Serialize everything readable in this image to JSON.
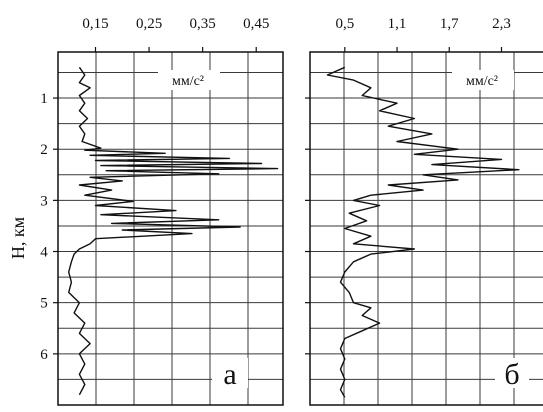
{
  "colors": {
    "ink": "#111111",
    "grid": "#3a3a3a",
    "paper": "#ffffff"
  },
  "shared": {
    "ylabel": "H, км"
  },
  "chart_data": [
    {
      "type": "line",
      "panel_label": "а",
      "unit_label": "мм/с²",
      "xlim": [
        0.08,
        0.5
      ],
      "ylim": [
        0.1,
        7.0
      ],
      "x_ticks": [
        {
          "value": 0.15,
          "label": "0,15"
        },
        {
          "value": 0.25,
          "label": "0,25"
        },
        {
          "value": 0.35,
          "label": "0,35"
        },
        {
          "value": 0.45,
          "label": "0,45"
        }
      ],
      "y_ticks": [
        {
          "value": 1,
          "label": "1"
        },
        {
          "value": 2,
          "label": "2"
        },
        {
          "value": 3,
          "label": "3"
        },
        {
          "value": 4,
          "label": "4"
        },
        {
          "value": 5,
          "label": "5"
        },
        {
          "value": 6,
          "label": "6"
        }
      ],
      "grid": true,
      "series": [
        {
          "points": [
            [
              0.12,
              0.4
            ],
            [
              0.13,
              0.55
            ],
            [
              0.12,
              0.7
            ],
            [
              0.14,
              0.8
            ],
            [
              0.12,
              0.95
            ],
            [
              0.13,
              1.1
            ],
            [
              0.12,
              1.25
            ],
            [
              0.135,
              1.4
            ],
            [
              0.12,
              1.55
            ],
            [
              0.13,
              1.7
            ],
            [
              0.125,
              1.85
            ],
            [
              0.16,
              1.98
            ],
            [
              0.13,
              2.02
            ],
            [
              0.28,
              2.08
            ],
            [
              0.14,
              2.12
            ],
            [
              0.4,
              2.18
            ],
            [
              0.15,
              2.22
            ],
            [
              0.46,
              2.28
            ],
            [
              0.16,
              2.32
            ],
            [
              0.49,
              2.38
            ],
            [
              0.17,
              2.42
            ],
            [
              0.38,
              2.48
            ],
            [
              0.14,
              2.55
            ],
            [
              0.2,
              2.62
            ],
            [
              0.12,
              2.7
            ],
            [
              0.18,
              2.8
            ],
            [
              0.13,
              2.9
            ],
            [
              0.22,
              3.02
            ],
            [
              0.15,
              3.1
            ],
            [
              0.3,
              3.2
            ],
            [
              0.16,
              3.28
            ],
            [
              0.38,
              3.38
            ],
            [
              0.18,
              3.45
            ],
            [
              0.42,
              3.52
            ],
            [
              0.2,
              3.58
            ],
            [
              0.33,
              3.65
            ],
            [
              0.15,
              3.75
            ],
            [
              0.14,
              3.85
            ],
            [
              0.12,
              3.95
            ],
            [
              0.11,
              4.05
            ],
            [
              0.105,
              4.2
            ],
            [
              0.1,
              4.4
            ],
            [
              0.105,
              4.6
            ],
            [
              0.1,
              4.8
            ],
            [
              0.12,
              5.0
            ],
            [
              0.11,
              5.2
            ],
            [
              0.13,
              5.4
            ],
            [
              0.12,
              5.6
            ],
            [
              0.14,
              5.8
            ],
            [
              0.12,
              6.0
            ],
            [
              0.13,
              6.2
            ],
            [
              0.12,
              6.4
            ],
            [
              0.13,
              6.6
            ],
            [
              0.12,
              6.8
            ]
          ]
        }
      ]
    },
    {
      "type": "line",
      "panel_label": "б",
      "unit_label": "мм/с²",
      "xlim": [
        0.1,
        2.8
      ],
      "ylim": [
        0.1,
        7.0
      ],
      "x_ticks": [
        {
          "value": 0.5,
          "label": "0,5"
        },
        {
          "value": 1.1,
          "label": "1,1"
        },
        {
          "value": 1.7,
          "label": "1,7"
        },
        {
          "value": 2.3,
          "label": "2,3"
        }
      ],
      "y_ticks": [
        {
          "value": 1,
          "label": ""
        },
        {
          "value": 2,
          "label": ""
        },
        {
          "value": 3,
          "label": ""
        },
        {
          "value": 4,
          "label": ""
        },
        {
          "value": 5,
          "label": ""
        },
        {
          "value": 6,
          "label": ""
        }
      ],
      "grid": true,
      "series": [
        {
          "points": [
            [
              0.5,
              0.4
            ],
            [
              0.3,
              0.55
            ],
            [
              0.6,
              0.65
            ],
            [
              0.8,
              0.8
            ],
            [
              0.7,
              0.95
            ],
            [
              1.1,
              1.1
            ],
            [
              0.9,
              1.25
            ],
            [
              1.3,
              1.4
            ],
            [
              1.0,
              1.55
            ],
            [
              1.5,
              1.7
            ],
            [
              1.1,
              1.85
            ],
            [
              1.8,
              2.0
            ],
            [
              1.3,
              2.1
            ],
            [
              2.3,
              2.2
            ],
            [
              1.5,
              2.3
            ],
            [
              2.5,
              2.4
            ],
            [
              1.4,
              2.5
            ],
            [
              1.8,
              2.6
            ],
            [
              1.0,
              2.7
            ],
            [
              1.4,
              2.8
            ],
            [
              0.8,
              2.9
            ],
            [
              0.6,
              3.0
            ],
            [
              0.9,
              3.1
            ],
            [
              0.55,
              3.25
            ],
            [
              0.75,
              3.4
            ],
            [
              0.5,
              3.55
            ],
            [
              0.8,
              3.7
            ],
            [
              0.6,
              3.85
            ],
            [
              1.3,
              3.95
            ],
            [
              0.8,
              4.05
            ],
            [
              0.6,
              4.2
            ],
            [
              0.5,
              4.4
            ],
            [
              0.45,
              4.6
            ],
            [
              0.55,
              4.8
            ],
            [
              0.6,
              5.0
            ],
            [
              0.8,
              5.1
            ],
            [
              0.7,
              5.25
            ],
            [
              0.9,
              5.4
            ],
            [
              0.7,
              5.55
            ],
            [
              0.5,
              5.7
            ],
            [
              0.45,
              5.9
            ],
            [
              0.5,
              6.1
            ],
            [
              0.45,
              6.3
            ],
            [
              0.5,
              6.5
            ],
            [
              0.45,
              6.7
            ],
            [
              0.5,
              6.85
            ]
          ]
        }
      ]
    }
  ]
}
